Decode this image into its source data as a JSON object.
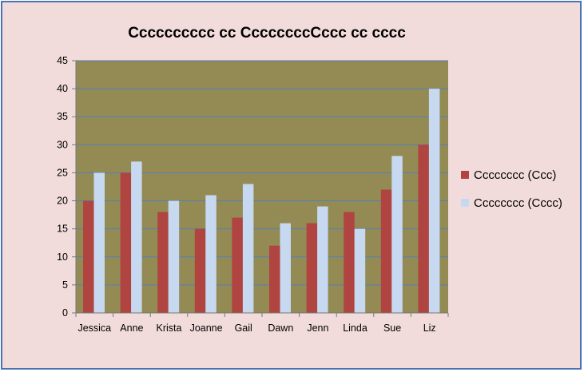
{
  "chart_data": {
    "type": "bar",
    "title": "Cccccccccc cc CcccccccCccc cc cccc",
    "categories": [
      "Jessica",
      "Anne",
      "Krista",
      "Joanne",
      "Gail",
      "Dawn",
      "Jenn",
      "Linda",
      "Sue",
      "Liz"
    ],
    "series": [
      {
        "name": "Cccccccc (Ccc)",
        "values": [
          20,
          25,
          18,
          15,
          17,
          12,
          16,
          18,
          22,
          30
        ],
        "color": "#b04441"
      },
      {
        "name": "Cccccccc (Cccc)",
        "values": [
          25,
          27,
          20,
          21,
          23,
          16,
          19,
          15,
          28,
          40
        ],
        "color": "#c6d9f1"
      }
    ],
    "ylim": [
      0,
      45
    ],
    "yticks": [
      0,
      5,
      10,
      15,
      20,
      25,
      30,
      35,
      40,
      45
    ],
    "grid": true,
    "legend": "right",
    "plot_background": "#948a54",
    "chart_background": "#f2dcdb",
    "gridline_color": "#4f81bd"
  }
}
